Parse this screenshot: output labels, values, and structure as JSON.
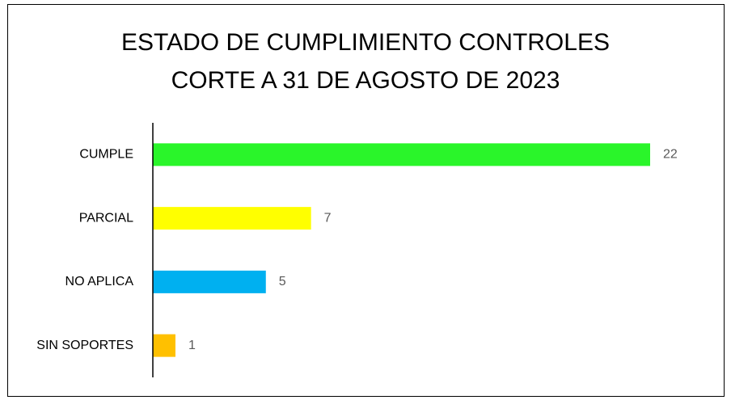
{
  "chart_data": {
    "type": "bar",
    "orientation": "horizontal",
    "title": [
      "ESTADO DE CUMPLIMIENTO CONTROLES",
      "CORTE A 31 DE AGOSTO DE 2023"
    ],
    "categories": [
      "CUMPLE",
      "PARCIAL",
      "NO APLICA",
      "SIN SOPORTES"
    ],
    "values": [
      22,
      7,
      5,
      1
    ],
    "colors": [
      "#2af52a",
      "#ffff00",
      "#00b0f0",
      "#ffc000"
    ],
    "xlim": [
      0,
      22
    ]
  }
}
